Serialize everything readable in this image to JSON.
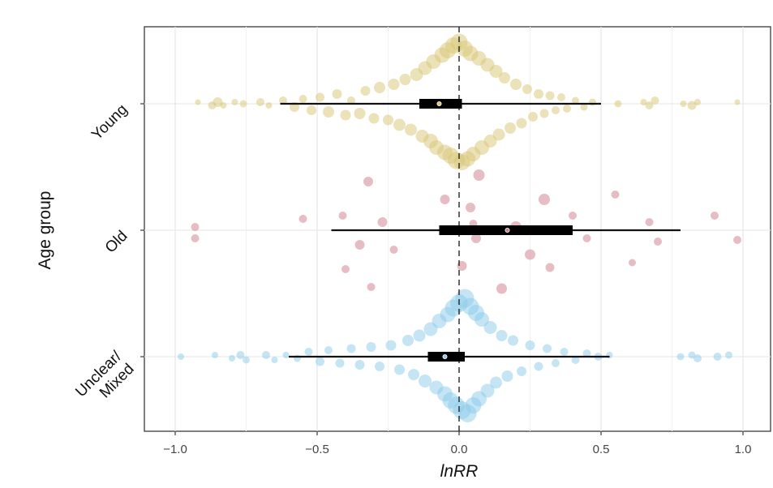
{
  "chart_data": {
    "type": "scatter",
    "subtype": "orchard-plot",
    "title": "",
    "xlabel": "lnRR",
    "ylabel": "Age group",
    "xlim": [
      -1.1,
      1.1
    ],
    "xticks": [
      -1.0,
      -0.5,
      0.0,
      0.5,
      1.0
    ],
    "xtick_labels": [
      "-1.0",
      "-0.5",
      "0.0",
      "0.5",
      "1.0"
    ],
    "reference_line": 0.0,
    "grid": true,
    "legend": "none",
    "categories": [
      "Young",
      "Old",
      "Unclear/ Mixed"
    ],
    "category_labels": [
      [
        "Young"
      ],
      [
        "Old"
      ],
      [
        "Unclear/",
        "Mixed"
      ]
    ],
    "series": [
      {
        "name": "Young",
        "color": "#d8c674",
        "estimate": -0.07,
        "ci": [
          -0.14,
          0.01
        ],
        "pi": [
          -0.63,
          0.5
        ],
        "points": [
          [
            -0.92,
            0.01,
            3.5
          ],
          [
            -0.87,
            -0.01,
            5.0
          ],
          [
            -0.85,
            0.01,
            6.0
          ],
          [
            -0.83,
            -0.01,
            4.0
          ],
          [
            -0.79,
            0.01,
            4.0
          ],
          [
            -0.76,
            0.0,
            4.5
          ],
          [
            -0.7,
            0.01,
            5.0
          ],
          [
            -0.67,
            -0.01,
            4.0
          ],
          [
            -0.62,
            0.02,
            5.0
          ],
          [
            -0.58,
            -0.02,
            6.0
          ],
          [
            -0.55,
            0.03,
            5.0
          ],
          [
            -0.52,
            -0.04,
            6.0
          ],
          [
            -0.49,
            0.04,
            5.5
          ],
          [
            -0.46,
            -0.05,
            7.0
          ],
          [
            -0.43,
            0.06,
            6.0
          ],
          [
            -0.4,
            -0.07,
            6.5
          ],
          [
            -0.38,
            0.02,
            5.0
          ],
          [
            -0.35,
            -0.06,
            7.0
          ],
          [
            -0.33,
            0.08,
            6.0
          ],
          [
            -0.3,
            -0.09,
            6.5
          ],
          [
            -0.28,
            0.1,
            7.0
          ],
          [
            -0.25,
            -0.1,
            6.5
          ],
          [
            -0.23,
            0.12,
            7.0
          ],
          [
            -0.21,
            -0.13,
            7.5
          ],
          [
            -0.19,
            0.15,
            7.0
          ],
          [
            -0.17,
            -0.16,
            7.5
          ],
          [
            -0.15,
            0.18,
            8.0
          ],
          [
            -0.13,
            -0.2,
            8.0
          ],
          [
            -0.12,
            0.22,
            8.5
          ],
          [
            -0.1,
            -0.23,
            9.0
          ],
          [
            -0.09,
            0.26,
            9.0
          ],
          [
            -0.08,
            -0.27,
            9.0
          ],
          [
            -0.06,
            0.3,
            9.5
          ],
          [
            -0.05,
            -0.3,
            9.5
          ],
          [
            -0.04,
            0.33,
            10.0
          ],
          [
            -0.03,
            -0.32,
            10.0
          ],
          [
            -0.02,
            0.36,
            10.0
          ],
          [
            -0.01,
            -0.35,
            10.5
          ],
          [
            0.0,
            0.38,
            10.5
          ],
          [
            0.01,
            -0.36,
            10.0
          ],
          [
            0.02,
            0.34,
            10.0
          ],
          [
            0.03,
            -0.34,
            9.5
          ],
          [
            0.04,
            0.31,
            9.5
          ],
          [
            0.05,
            -0.31,
            9.0
          ],
          [
            0.07,
            0.28,
            9.0
          ],
          [
            0.08,
            -0.27,
            9.0
          ],
          [
            0.1,
            0.24,
            8.5
          ],
          [
            0.11,
            -0.23,
            8.0
          ],
          [
            0.13,
            0.2,
            8.0
          ],
          [
            0.14,
            -0.19,
            7.5
          ],
          [
            0.16,
            0.16,
            7.0
          ],
          [
            0.18,
            -0.15,
            7.0
          ],
          [
            0.2,
            0.12,
            7.0
          ],
          [
            0.22,
            -0.12,
            6.5
          ],
          [
            0.24,
            0.09,
            6.0
          ],
          [
            0.26,
            -0.08,
            6.0
          ],
          [
            0.28,
            0.06,
            6.0
          ],
          [
            0.3,
            -0.06,
            5.5
          ],
          [
            0.32,
            0.05,
            5.5
          ],
          [
            0.34,
            -0.04,
            5.0
          ],
          [
            0.36,
            0.04,
            5.0
          ],
          [
            0.38,
            -0.03,
            5.0
          ],
          [
            0.41,
            0.02,
            4.5
          ],
          [
            0.44,
            -0.02,
            4.5
          ],
          [
            0.47,
            0.01,
            4.5
          ],
          [
            0.56,
            0.0,
            4.5
          ],
          [
            0.65,
            0.01,
            4.0
          ],
          [
            0.67,
            -0.01,
            5.0
          ],
          [
            0.69,
            0.02,
            5.0
          ],
          [
            0.79,
            0.0,
            4.0
          ],
          [
            0.82,
            -0.01,
            5.5
          ],
          [
            0.84,
            0.01,
            4.0
          ],
          [
            0.98,
            0.01,
            3.5
          ]
        ]
      },
      {
        "name": "Old",
        "color": "#cd7b8c",
        "estimate": 0.17,
        "ci": [
          -0.07,
          0.4
        ],
        "pi": [
          -0.45,
          0.78
        ],
        "points": [
          [
            -0.93,
            0.02,
            5.0
          ],
          [
            -0.93,
            -0.05,
            5.0
          ],
          [
            -0.55,
            0.07,
            5.0
          ],
          [
            -0.41,
            0.09,
            5.0
          ],
          [
            -0.4,
            -0.24,
            5.0
          ],
          [
            -0.35,
            -0.09,
            6.0
          ],
          [
            -0.32,
            0.3,
            6.0
          ],
          [
            -0.31,
            -0.35,
            5.0
          ],
          [
            -0.27,
            0.05,
            6.0
          ],
          [
            -0.23,
            -0.12,
            5.0
          ],
          [
            -0.05,
            0.19,
            6.0
          ],
          [
            0.01,
            -0.22,
            6.0
          ],
          [
            0.04,
            0.14,
            6.0
          ],
          [
            0.05,
            0.04,
            5.0
          ],
          [
            0.06,
            -0.05,
            6.0
          ],
          [
            0.07,
            0.34,
            7.0
          ],
          [
            0.15,
            -0.36,
            6.5
          ],
          [
            0.2,
            0.02,
            7.0
          ],
          [
            0.25,
            -0.15,
            6.5
          ],
          [
            0.3,
            0.19,
            7.0
          ],
          [
            0.32,
            -0.23,
            5.5
          ],
          [
            0.4,
            0.09,
            5.0
          ],
          [
            0.45,
            -0.05,
            5.0
          ],
          [
            0.55,
            0.22,
            5.0
          ],
          [
            0.61,
            -0.2,
            4.5
          ],
          [
            0.67,
            0.05,
            5.0
          ],
          [
            0.7,
            -0.07,
            5.0
          ],
          [
            0.9,
            0.09,
            5.0
          ],
          [
            0.98,
            -0.06,
            5.0
          ]
        ]
      },
      {
        "name": "Unclear/ Mixed",
        "color": "#8ccbea",
        "estimate": -0.05,
        "ci": [
          -0.11,
          0.02
        ],
        "pi": [
          -0.6,
          0.53
        ],
        "points": [
          [
            -0.98,
            0.0,
            4.0
          ],
          [
            -0.86,
            0.01,
            4.0
          ],
          [
            -0.8,
            -0.01,
            4.0
          ],
          [
            -0.77,
            0.01,
            5.0
          ],
          [
            -0.75,
            -0.02,
            4.5
          ],
          [
            -0.68,
            0.01,
            5.0
          ],
          [
            -0.65,
            -0.02,
            4.0
          ],
          [
            -0.61,
            0.01,
            4.0
          ],
          [
            -0.57,
            -0.01,
            4.5
          ],
          [
            -0.53,
            0.03,
            5.0
          ],
          [
            -0.49,
            -0.03,
            5.5
          ],
          [
            -0.46,
            0.04,
            5.0
          ],
          [
            -0.42,
            -0.04,
            5.5
          ],
          [
            -0.38,
            0.05,
            5.5
          ],
          [
            -0.35,
            -0.05,
            6.0
          ],
          [
            -0.31,
            0.06,
            6.0
          ],
          [
            -0.28,
            -0.06,
            6.0
          ],
          [
            -0.24,
            0.07,
            6.5
          ],
          [
            -0.21,
            -0.08,
            6.5
          ],
          [
            -0.18,
            0.1,
            7.0
          ],
          [
            -0.16,
            -0.11,
            7.0
          ],
          [
            -0.14,
            0.13,
            7.5
          ],
          [
            -0.12,
            -0.15,
            8.0
          ],
          [
            -0.1,
            0.17,
            8.5
          ],
          [
            -0.08,
            -0.19,
            8.5
          ],
          [
            -0.07,
            0.22,
            9.0
          ],
          [
            -0.05,
            -0.23,
            9.5
          ],
          [
            -0.04,
            0.26,
            9.5
          ],
          [
            -0.03,
            -0.27,
            10.0
          ],
          [
            -0.02,
            0.3,
            10.5
          ],
          [
            -0.01,
            -0.3,
            10.5
          ],
          [
            0.0,
            0.33,
            11.0
          ],
          [
            0.01,
            -0.33,
            11.0
          ],
          [
            0.02,
            0.36,
            11.5
          ],
          [
            0.03,
            -0.35,
            11.0
          ],
          [
            0.04,
            0.31,
            10.5
          ],
          [
            0.05,
            -0.3,
            10.0
          ],
          [
            0.06,
            0.27,
            10.0
          ],
          [
            0.07,
            -0.26,
            9.5
          ],
          [
            0.08,
            0.23,
            9.0
          ],
          [
            0.1,
            -0.21,
            8.5
          ],
          [
            0.11,
            0.18,
            8.0
          ],
          [
            0.13,
            -0.16,
            7.5
          ],
          [
            0.15,
            0.13,
            7.0
          ],
          [
            0.17,
            -0.12,
            7.0
          ],
          [
            0.19,
            0.1,
            6.5
          ],
          [
            0.22,
            -0.09,
            6.0
          ],
          [
            0.25,
            0.07,
            6.0
          ],
          [
            0.28,
            -0.06,
            5.5
          ],
          [
            0.31,
            0.05,
            5.5
          ],
          [
            0.34,
            -0.04,
            5.0
          ],
          [
            0.37,
            0.03,
            5.0
          ],
          [
            0.41,
            -0.02,
            5.0
          ],
          [
            0.45,
            0.02,
            5.0
          ],
          [
            0.49,
            0.0,
            5.0
          ],
          [
            0.53,
            0.01,
            4.0
          ],
          [
            0.78,
            0.0,
            4.5
          ],
          [
            0.82,
            0.01,
            4.5
          ],
          [
            0.84,
            -0.01,
            5.0
          ],
          [
            0.91,
            0.0,
            5.0
          ],
          [
            0.95,
            0.01,
            4.5
          ]
        ]
      }
    ]
  }
}
